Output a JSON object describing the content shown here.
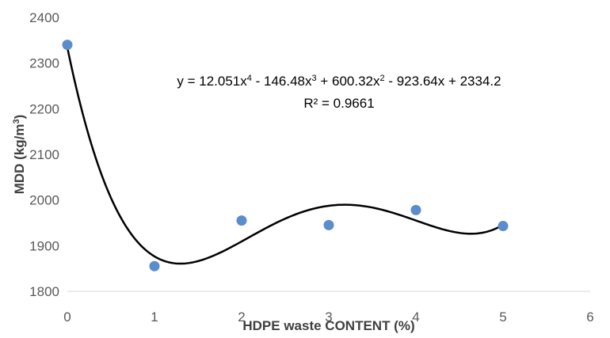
{
  "chart_data": {
    "type": "scatter",
    "xlabel": "HDPE waste CONTENT (%)",
    "ylabel": "MDD (kg/m",
    "ylabel_sup": "3",
    "ylabel_end": ")",
    "xlim": [
      0,
      6
    ],
    "ylim": [
      1800,
      2400
    ],
    "x_ticks": [
      "0",
      "1",
      "2",
      "3",
      "4",
      "5",
      "6"
    ],
    "y_ticks": [
      "1800",
      "1900",
      "2000",
      "2100",
      "2200",
      "2300",
      "2400"
    ],
    "grid": false,
    "legend": "none",
    "point_color": "#5b8ccb",
    "trendline_color": "#000000",
    "series": [
      {
        "x": [
          0,
          1,
          2,
          3,
          4,
          5
        ],
        "y": [
          2340,
          1855,
          1955,
          1945,
          1978,
          1943
        ]
      }
    ],
    "trendline": {
      "type": "polynomial",
      "order": 4,
      "coefficients": [
        12.051,
        -146.48,
        600.32,
        -923.64,
        2334.2
      ],
      "equation_parts": [
        {
          "t": "y = 12.051x"
        },
        {
          "t": "4",
          "sup": true
        },
        {
          "t": " - 146.48x"
        },
        {
          "t": "3",
          "sup": true
        },
        {
          "t": " + 600.32x"
        },
        {
          "t": "2",
          "sup": true
        },
        {
          "t": " - 923.64x + 2334.2"
        }
      ],
      "r_squared_label": "R² = 0.9661"
    }
  }
}
